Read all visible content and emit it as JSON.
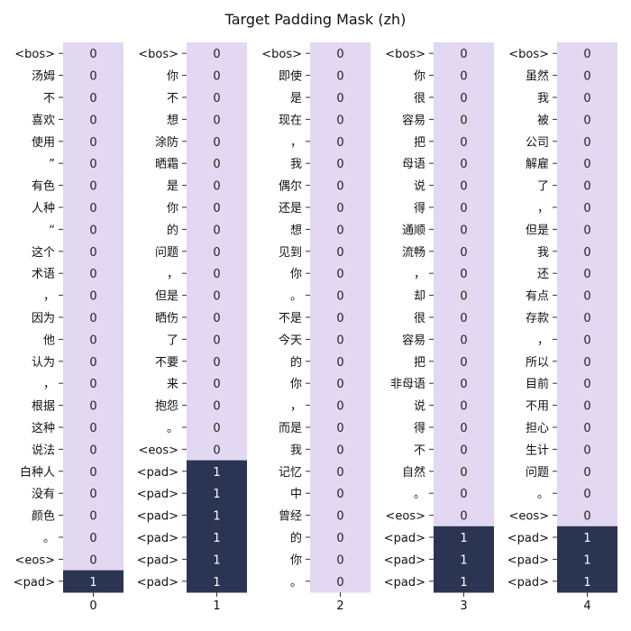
{
  "chart_data": {
    "type": "heatmap",
    "title": "Target Padding Mask (zh)",
    "colors": {
      "zero": "#e2d8f1",
      "one": "#2b3553",
      "zero_text": "#222222",
      "one_text": "#ffffff"
    },
    "panels": [
      {
        "x_label": "0",
        "tokens": [
          "<bos>",
          "汤姆",
          "不",
          "喜欢",
          "使用",
          "”",
          "有色",
          "人种",
          "“",
          "这个",
          "术语",
          "，",
          "因为",
          "他",
          "认为",
          "，",
          "根据",
          "这种",
          "说法",
          "白种人",
          "没有",
          "颜色",
          "。",
          "<eos>",
          "<pad>"
        ],
        "values": [
          "0",
          "0",
          "0",
          "0",
          "0",
          "0",
          "0",
          "0",
          "0",
          "0",
          "0",
          "0",
          "0",
          "0",
          "0",
          "0",
          "0",
          "0",
          "0",
          "0",
          "0",
          "0",
          "0",
          "0",
          "1"
        ]
      },
      {
        "x_label": "1",
        "tokens": [
          "<bos>",
          "你",
          "不",
          "想",
          "涂防",
          "晒霜",
          "是",
          "你",
          "的",
          "问题",
          "，",
          "但是",
          "晒伤",
          "了",
          "不要",
          "来",
          "抱怨",
          "。",
          "<eos>",
          "<pad>",
          "<pad>",
          "<pad>",
          "<pad>",
          "<pad>",
          "<pad>"
        ],
        "values": [
          "0",
          "0",
          "0",
          "0",
          "0",
          "0",
          "0",
          "0",
          "0",
          "0",
          "0",
          "0",
          "0",
          "0",
          "0",
          "0",
          "0",
          "0",
          "0",
          "1",
          "1",
          "1",
          "1",
          "1",
          "1"
        ]
      },
      {
        "x_label": "2",
        "tokens": [
          "<bos>",
          "即使",
          "是",
          "现在",
          "，",
          "我",
          "偶尔",
          "还是",
          "想",
          "见到",
          "你",
          "。",
          "不是",
          "今天",
          "的",
          "你",
          "，",
          "而是",
          "我",
          "记忆",
          "中",
          "曾经",
          "的",
          "你",
          "。"
        ],
        "values": [
          "0",
          "0",
          "0",
          "0",
          "0",
          "0",
          "0",
          "0",
          "0",
          "0",
          "0",
          "0",
          "0",
          "0",
          "0",
          "0",
          "0",
          "0",
          "0",
          "0",
          "0",
          "0",
          "0",
          "0",
          "0"
        ]
      },
      {
        "x_label": "3",
        "tokens": [
          "<bos>",
          "你",
          "很",
          "容易",
          "把",
          "母语",
          "说",
          "得",
          "通顺",
          "流畅",
          "，",
          "却",
          "很",
          "容易",
          "把",
          "非母语",
          "说",
          "得",
          "不",
          "自然",
          "。",
          "<eos>",
          "<pad>",
          "<pad>",
          "<pad>"
        ],
        "values": [
          "0",
          "0",
          "0",
          "0",
          "0",
          "0",
          "0",
          "0",
          "0",
          "0",
          "0",
          "0",
          "0",
          "0",
          "0",
          "0",
          "0",
          "0",
          "0",
          "0",
          "0",
          "0",
          "1",
          "1",
          "1"
        ]
      },
      {
        "x_label": "4",
        "tokens": [
          "<bos>",
          "虽然",
          "我",
          "被",
          "公司",
          "解雇",
          "了",
          "，",
          "但是",
          "我",
          "还",
          "有点",
          "存款",
          "，",
          "所以",
          "目前",
          "不用",
          "担心",
          "生计",
          "问题",
          "。",
          "<eos>",
          "<pad>",
          "<pad>",
          "<pad>"
        ],
        "values": [
          "0",
          "0",
          "0",
          "0",
          "0",
          "0",
          "0",
          "0",
          "0",
          "0",
          "0",
          "0",
          "0",
          "0",
          "0",
          "0",
          "0",
          "0",
          "0",
          "0",
          "0",
          "0",
          "1",
          "1",
          "1"
        ]
      }
    ]
  }
}
